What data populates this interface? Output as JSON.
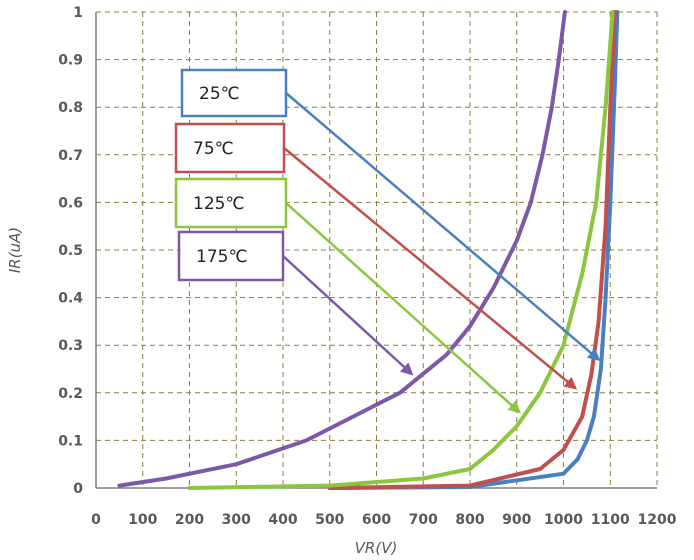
{
  "chart_data": {
    "type": "line",
    "xlabel": "VR(V)",
    "ylabel": "IR(uA)",
    "xlim": [
      0,
      1200
    ],
    "ylim": [
      0,
      1
    ],
    "x_ticks": [
      0,
      100,
      200,
      300,
      400,
      500,
      600,
      700,
      800,
      900,
      1000,
      1100,
      1200
    ],
    "x_tick_labels": [
      "0",
      "100",
      "200",
      "300",
      "400",
      "500",
      "600",
      "700",
      "800",
      "900",
      "1000",
      "1100",
      "1200"
    ],
    "y_ticks": [
      0,
      0.1,
      0.2,
      0.3,
      0.4,
      0.5,
      0.6,
      0.7,
      0.8,
      0.9,
      1
    ],
    "y_tick_labels": [
      "0",
      "0.1",
      "0.2",
      "0.3",
      "0.4",
      "0.5",
      "0.6",
      "0.7",
      "0.8",
      "0.9",
      "1"
    ],
    "grid": true,
    "series": [
      {
        "name": "25℃",
        "color": "#4a7fc1",
        "x": [
          500,
          800,
          1000,
          1030,
          1050,
          1065,
          1080,
          1090,
          1100,
          1110,
          1115
        ],
        "y": [
          0,
          0.002,
          0.03,
          0.06,
          0.1,
          0.15,
          0.25,
          0.4,
          0.6,
          0.85,
          1.0
        ]
      },
      {
        "name": "75℃",
        "color": "#c0504d",
        "x": [
          500,
          800,
          950,
          1000,
          1040,
          1060,
          1075,
          1090,
          1100,
          1110
        ],
        "y": [
          0,
          0.005,
          0.04,
          0.08,
          0.15,
          0.24,
          0.35,
          0.55,
          0.8,
          1.0
        ]
      },
      {
        "name": "125℃",
        "color": "#8cc63e",
        "x": [
          200,
          500,
          700,
          800,
          850,
          900,
          950,
          1000,
          1040,
          1070,
          1090,
          1105
        ],
        "y": [
          0,
          0.005,
          0.02,
          0.04,
          0.08,
          0.13,
          0.2,
          0.3,
          0.45,
          0.6,
          0.8,
          1.0
        ]
      },
      {
        "name": "175℃",
        "color": "#7e57a7",
        "x": [
          50,
          150,
          300,
          450,
          550,
          650,
          750,
          800,
          850,
          900,
          930,
          955,
          975,
          990,
          1003
        ],
        "y": [
          0.005,
          0.02,
          0.05,
          0.1,
          0.15,
          0.2,
          0.28,
          0.34,
          0.42,
          0.52,
          0.6,
          0.7,
          0.8,
          0.9,
          1.0
        ]
      }
    ],
    "annotations": [
      {
        "text": "25℃",
        "color": "#4a7fc1",
        "arrow_to": [
          1075,
          0.27
        ]
      },
      {
        "text": "75℃",
        "color": "#c0504d",
        "arrow_to": [
          1025,
          0.21
        ]
      },
      {
        "text": "125℃",
        "color": "#8cc63e",
        "arrow_to": [
          905,
          0.16
        ]
      },
      {
        "text": "175℃",
        "color": "#7e57a7",
        "arrow_to": [
          675,
          0.24
        ]
      }
    ]
  }
}
